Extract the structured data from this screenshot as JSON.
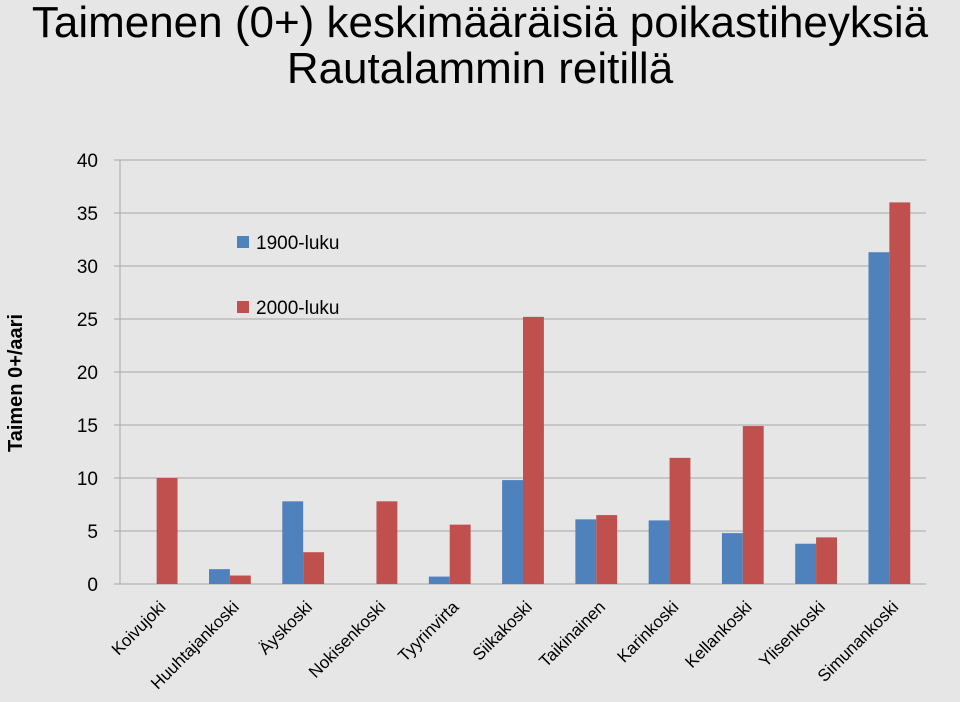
{
  "chart_data": {
    "type": "bar",
    "title_lines": [
      "Taimenen (0+) keskimääräisiä poikastiheyksiä",
      "Rautalammin reitillä"
    ],
    "xlabel": "",
    "ylabel": "Taimen 0+/aari",
    "ylim": [
      0,
      40
    ],
    "yticks": [
      0,
      5,
      10,
      15,
      20,
      25,
      30,
      35,
      40
    ],
    "grid": true,
    "legend_position": "top-left",
    "categories": [
      "Koivujoki",
      "Huuhtajankoski",
      "Äyskoski",
      "Nokisenkoski",
      "Tyyrinvirta",
      "Siikakoski",
      "Taikinainen",
      "Karinkoski",
      "Kellankoski",
      "Ylisenkoski",
      "Simunankoski"
    ],
    "series": [
      {
        "name": "1900-luku",
        "color": "#4f81bd",
        "values": [
          null,
          1.4,
          7.8,
          null,
          0.7,
          9.8,
          6.1,
          6.0,
          4.8,
          3.8,
          31.3
        ]
      },
      {
        "name": "2000-luku",
        "color": "#c0504d",
        "values": [
          10.0,
          0.8,
          3.0,
          7.8,
          5.6,
          25.2,
          6.5,
          11.9,
          14.9,
          4.4,
          36.0
        ]
      }
    ]
  }
}
